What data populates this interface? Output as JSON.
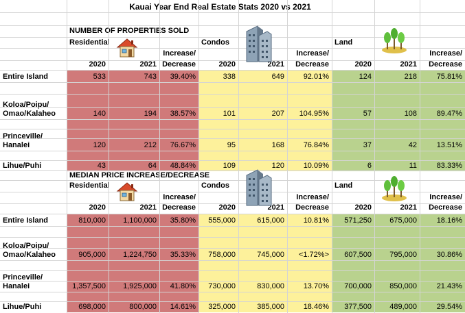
{
  "title": "Kauai Year End Real Estate Stats 2020 vs 2021",
  "sold": {
    "heading": "NUMBER OF PROPERTIES SOLD",
    "groups": [
      "Residential",
      "Condos",
      "Land"
    ],
    "change_label_1": "Increase/",
    "change_label_2": "Decrease",
    "year_a": "2020",
    "year_b": "2021",
    "rows": [
      {
        "label1": "Entire Island",
        "label2": "",
        "values": [
          "533",
          "743",
          "39.40%",
          "338",
          "649",
          "92.01%",
          "124",
          "218",
          "75.81%"
        ]
      },
      {
        "label1": "Koloa/Poipu/",
        "label2": "Omao/Kalaheo",
        "values": [
          "140",
          "194",
          "38.57%",
          "101",
          "207",
          "104.95%",
          "57",
          "108",
          "89.47%"
        ]
      },
      {
        "label1": "Princeville/",
        "label2": "Hanalei",
        "values": [
          "120",
          "212",
          "76.67%",
          "95",
          "168",
          "76.84%",
          "37",
          "42",
          "13.51%"
        ]
      },
      {
        "label1": "Lihue/Puhi",
        "label2": "",
        "values": [
          "43",
          "64",
          "48.84%",
          "109",
          "120",
          "10.09%",
          "6",
          "11",
          "83.33%"
        ]
      }
    ]
  },
  "price": {
    "heading": "MEDIAN PRICE INCREASE/DECREASE",
    "groups": [
      "Residential",
      "Condos",
      "Land"
    ],
    "change_label_1": "Increase/",
    "change_label_2": "Decrease",
    "year_a": "2020",
    "year_b": "2021",
    "rows": [
      {
        "label1": "Entire Island",
        "label2": "",
        "values": [
          "810,000",
          "1,100,000",
          "35.80%",
          "555,000",
          "615,000",
          "10.81%",
          "571,250",
          "675,000",
          "18.16%"
        ]
      },
      {
        "label1": "Koloa/Poipu/",
        "label2": "Omao/Kalaheo",
        "values": [
          "905,000",
          "1,224,750",
          "35.33%",
          "758,000",
          "745,000",
          "<1.72%>",
          "607,500",
          "795,000",
          "30.86%"
        ]
      },
      {
        "label1": "Princeville/",
        "label2": "Hanalei",
        "values": [
          "1,357,500",
          "1,925,000",
          "41.80%",
          "730,000",
          "830,000",
          "13.70%",
          "700,000",
          "850,000",
          "21.43%"
        ]
      },
      {
        "label1": "Lihue/Puhi",
        "label2": "",
        "values": [
          "698,000",
          "800,000",
          "14.61%",
          "325,000",
          "385,000",
          "18.46%",
          "377,500",
          "489,000",
          "29.54%"
        ]
      }
    ]
  },
  "icons": {
    "residential": "house-icon",
    "condos": "building-icon",
    "land": "trees-icon"
  },
  "colors": {
    "residential": "#d07a7a",
    "condos": "#fdf19b",
    "land": "#b9d28e"
  }
}
